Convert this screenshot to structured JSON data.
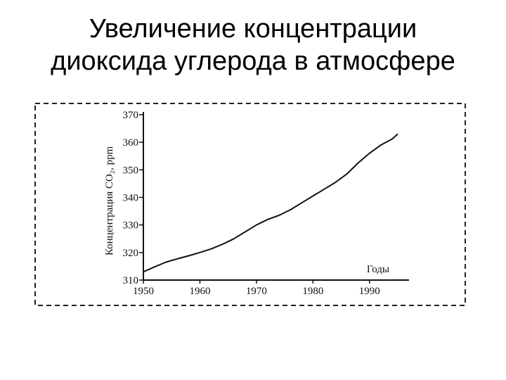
{
  "slide": {
    "title_line1": "Увеличение концентрации",
    "title_line2": "диоксида углерода в атмосфере"
  },
  "chart_data": {
    "type": "line",
    "xlabel": "Годы",
    "ylabel": "Концентрация CO₂, ppm",
    "xlim": [
      1950,
      1995
    ],
    "ylim": [
      310,
      370
    ],
    "x_ticks": [
      "1950",
      "1960",
      "1970",
      "1980",
      "1990"
    ],
    "y_ticks": [
      "310",
      "320",
      "330",
      "340",
      "350",
      "360",
      "370"
    ],
    "grid": false,
    "series": [
      {
        "x": [
          1950,
          1952,
          1954,
          1956,
          1958,
          1960,
          1962,
          1964,
          1966,
          1968,
          1970,
          1972,
          1974,
          1976,
          1978,
          1980,
          1982,
          1984,
          1986,
          1988,
          1990,
          1992,
          1994,
          1995
        ],
        "y": [
          313,
          314.8,
          316.5,
          317.7,
          318.8,
          320,
          321.3,
          323,
          325,
          327.5,
          330,
          332,
          333.5,
          335.5,
          338,
          340.5,
          343,
          345.5,
          348.5,
          352.5,
          356,
          359,
          361.2,
          363
        ]
      }
    ],
    "colors": {
      "line": "#111111",
      "frame": "#222222"
    }
  }
}
